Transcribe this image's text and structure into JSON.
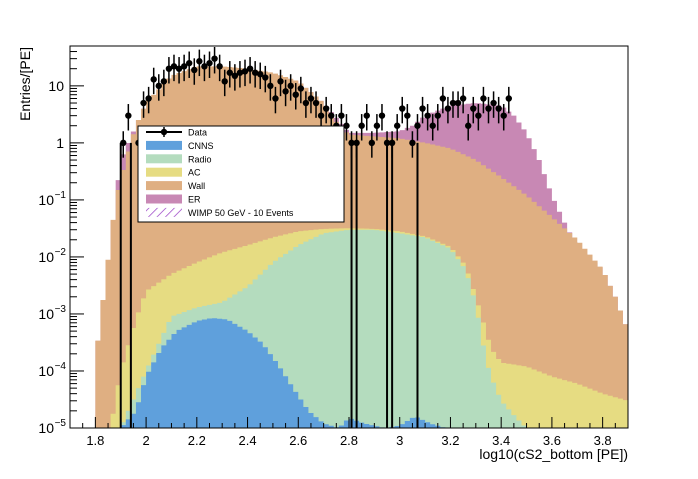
{
  "chart_data": {
    "type": "area",
    "title": "",
    "xlabel": "log10(cS2_bottom [PE])",
    "ylabel": "Entries/[PE]",
    "x_range": [
      1.7,
      3.9
    ],
    "y_range": [
      1e-05,
      50
    ],
    "y_scale": "log",
    "x_ticks": [
      "1.8",
      "2",
      "2.2",
      "2.4",
      "2.6",
      "2.8",
      "3",
      "3.2",
      "3.4",
      "3.6",
      "3.8"
    ],
    "x_tick_values": [
      1.8,
      2.0,
      2.2,
      2.4,
      2.6,
      2.8,
      3.0,
      3.2,
      3.4,
      3.6,
      3.8
    ],
    "y_ticks": [
      {
        "value": 1e-05,
        "base": "10",
        "exp": "−5"
      },
      {
        "value": 0.0001,
        "base": "10",
        "exp": "−4"
      },
      {
        "value": 0.001,
        "base": "10",
        "exp": "−3"
      },
      {
        "value": 0.01,
        "base": "10",
        "exp": "−2"
      },
      {
        "value": 0.1,
        "base": "10",
        "exp": "−1"
      },
      {
        "value": 1,
        "base": "1",
        "exp": ""
      },
      {
        "value": 10,
        "base": "10",
        "exp": ""
      }
    ],
    "legend_position": "inside-left",
    "stack": [
      {
        "name": "CNNS",
        "color": "#5fa0dc",
        "points": [
          [
            1.9,
            1e-05
          ],
          [
            1.96,
            2e-05
          ],
          [
            2.0,
            8e-05
          ],
          [
            2.06,
            0.00025
          ],
          [
            2.12,
            0.0005
          ],
          [
            2.2,
            0.00075
          ],
          [
            2.26,
            0.00085
          ],
          [
            2.32,
            0.0008
          ],
          [
            2.4,
            0.0005
          ],
          [
            2.46,
            0.0003
          ],
          [
            2.52,
            0.00013
          ],
          [
            2.58,
            5e-05
          ],
          [
            2.64,
            2e-05
          ],
          [
            2.7,
            1.2e-05
          ],
          [
            2.76,
            1e-05
          ],
          [
            2.8,
            1.5e-05
          ],
          [
            2.86,
            1.2e-05
          ],
          [
            2.94,
            1e-05
          ],
          [
            3.0,
            1.1e-05
          ],
          [
            3.06,
            1.6e-05
          ],
          [
            3.12,
            1.2e-05
          ],
          [
            3.18,
            1e-05
          ]
        ]
      },
      {
        "name": "Radio",
        "color": "#b4dcbe",
        "points": [
          [
            1.86,
            1e-05
          ],
          [
            1.9,
            1e-05
          ],
          [
            2.0,
            0.0001
          ],
          [
            2.1,
            0.0009
          ],
          [
            2.2,
            0.0013
          ],
          [
            2.3,
            0.0016
          ],
          [
            2.4,
            0.003
          ],
          [
            2.5,
            0.008
          ],
          [
            2.6,
            0.016
          ],
          [
            2.7,
            0.026
          ],
          [
            2.8,
            0.03
          ],
          [
            2.9,
            0.03
          ],
          [
            3.0,
            0.026
          ],
          [
            3.1,
            0.022
          ],
          [
            3.2,
            0.014
          ],
          [
            3.26,
            0.006
          ],
          [
            3.3,
            0.0015
          ],
          [
            3.34,
            0.00016
          ],
          [
            3.36,
            8e-05
          ],
          [
            3.4,
            3e-05
          ],
          [
            3.46,
            1.5e-05
          ],
          [
            3.5,
            1e-05
          ]
        ]
      },
      {
        "name": "AC",
        "color": "#e6dc82",
        "points": [
          [
            1.82,
            1e-05
          ],
          [
            1.86,
            1e-05
          ],
          [
            1.9,
            0.0001
          ],
          [
            1.96,
            0.0008
          ],
          [
            2.0,
            0.0025
          ],
          [
            2.1,
            0.005
          ],
          [
            2.2,
            0.008
          ],
          [
            2.3,
            0.012
          ],
          [
            2.4,
            0.016
          ],
          [
            2.5,
            0.022
          ],
          [
            2.6,
            0.028
          ],
          [
            2.7,
            0.031
          ],
          [
            2.8,
            0.032
          ],
          [
            2.9,
            0.031
          ],
          [
            3.0,
            0.028
          ],
          [
            3.1,
            0.023
          ],
          [
            3.2,
            0.015
          ],
          [
            3.26,
            0.007
          ],
          [
            3.3,
            0.002
          ],
          [
            3.36,
            0.00025
          ],
          [
            3.4,
            0.00014
          ],
          [
            3.5,
            0.00012
          ],
          [
            3.6,
            8e-05
          ],
          [
            3.7,
            6e-05
          ],
          [
            3.8,
            4e-05
          ],
          [
            3.9,
            3e-05
          ]
        ]
      },
      {
        "name": "Wall",
        "color": "#dfaf82",
        "points": [
          [
            1.8,
            0.00015
          ],
          [
            1.84,
            0.004
          ],
          [
            1.88,
            0.1
          ],
          [
            1.92,
            0.5
          ],
          [
            1.96,
            2
          ],
          [
            2.0,
            5
          ],
          [
            2.1,
            15
          ],
          [
            2.2,
            22
          ],
          [
            2.3,
            22
          ],
          [
            2.4,
            20
          ],
          [
            2.5,
            17
          ],
          [
            2.6,
            12
          ],
          [
            2.7,
            5
          ],
          [
            2.76,
            2
          ],
          [
            2.8,
            1.4
          ],
          [
            2.9,
            1.3
          ],
          [
            3.0,
            1.2
          ],
          [
            3.1,
            1.0
          ],
          [
            3.2,
            0.8
          ],
          [
            3.3,
            0.5
          ],
          [
            3.4,
            0.25
          ],
          [
            3.5,
            0.12
          ],
          [
            3.6,
            0.05
          ],
          [
            3.7,
            0.02
          ],
          [
            3.8,
            0.006
          ],
          [
            3.85,
            0.002
          ],
          [
            3.9,
            0.0005
          ]
        ]
      },
      {
        "name": "ER",
        "color": "#c888b4",
        "points": [
          [
            1.8,
            0.00015
          ],
          [
            1.9,
            0.5
          ],
          [
            2.0,
            5
          ],
          [
            2.2,
            22
          ],
          [
            2.4,
            20
          ],
          [
            2.6,
            12
          ],
          [
            2.7,
            5
          ],
          [
            2.8,
            1.5
          ],
          [
            2.9,
            1.5
          ],
          [
            3.0,
            1.6
          ],
          [
            3.05,
            2.0
          ],
          [
            3.1,
            3.0
          ],
          [
            3.2,
            4.5
          ],
          [
            3.3,
            5.0
          ],
          [
            3.4,
            4.5
          ],
          [
            3.45,
            3.0
          ],
          [
            3.5,
            1.5
          ],
          [
            3.55,
            0.5
          ],
          [
            3.6,
            0.12
          ],
          [
            3.65,
            0.04
          ],
          [
            3.7,
            0.015
          ],
          [
            3.8,
            0.006
          ],
          [
            3.85,
            0.002
          ],
          [
            3.9,
            0.0005
          ]
        ]
      }
    ],
    "data_points": [
      {
        "x": 1.91,
        "y": 1.0
      },
      {
        "x": 1.93,
        "y": 3.0
      },
      {
        "x": 1.97,
        "y": 1.0
      },
      {
        "x": 1.99,
        "y": 5.0
      },
      {
        "x": 2.01,
        "y": 6.0
      },
      {
        "x": 2.03,
        "y": 13.0
      },
      {
        "x": 2.05,
        "y": 10.0
      },
      {
        "x": 2.07,
        "y": 12.0
      },
      {
        "x": 2.09,
        "y": 20.0
      },
      {
        "x": 2.11,
        "y": 22.0
      },
      {
        "x": 2.13,
        "y": 20.0
      },
      {
        "x": 2.15,
        "y": 22.0
      },
      {
        "x": 2.17,
        "y": 25.0
      },
      {
        "x": 2.19,
        "y": 19.0
      },
      {
        "x": 2.21,
        "y": 27.0
      },
      {
        "x": 2.23,
        "y": 22.0
      },
      {
        "x": 2.25,
        "y": 25.0
      },
      {
        "x": 2.27,
        "y": 30.0
      },
      {
        "x": 2.29,
        "y": 22.0
      },
      {
        "x": 2.31,
        "y": 12.0
      },
      {
        "x": 2.33,
        "y": 17.0
      },
      {
        "x": 2.35,
        "y": 15.0
      },
      {
        "x": 2.37,
        "y": 17.0
      },
      {
        "x": 2.39,
        "y": 18.0
      },
      {
        "x": 2.41,
        "y": 20.0
      },
      {
        "x": 2.43,
        "y": 17.0
      },
      {
        "x": 2.45,
        "y": 16.0
      },
      {
        "x": 2.47,
        "y": 14.0
      },
      {
        "x": 2.49,
        "y": 10.0
      },
      {
        "x": 2.51,
        "y": 6.0
      },
      {
        "x": 2.53,
        "y": 12.0
      },
      {
        "x": 2.55,
        "y": 8.0
      },
      {
        "x": 2.57,
        "y": 10.0
      },
      {
        "x": 2.59,
        "y": 7.0
      },
      {
        "x": 2.61,
        "y": 9.0
      },
      {
        "x": 2.63,
        "y": 5.0
      },
      {
        "x": 2.65,
        "y": 6.0
      },
      {
        "x": 2.67,
        "y": 5.0
      },
      {
        "x": 2.69,
        "y": 3.0
      },
      {
        "x": 2.71,
        "y": 4.0
      },
      {
        "x": 2.73,
        "y": 3.0
      },
      {
        "x": 2.75,
        "y": 2.0
      },
      {
        "x": 2.77,
        "y": 3.0
      },
      {
        "x": 2.79,
        "y": 2.0
      },
      {
        "x": 2.81,
        "y": 1.0
      },
      {
        "x": 2.83,
        "y": 1.0
      },
      {
        "x": 2.85,
        "y": 2.0
      },
      {
        "x": 2.87,
        "y": 3.0
      },
      {
        "x": 2.89,
        "y": 1.0
      },
      {
        "x": 2.91,
        "y": 2.0
      },
      {
        "x": 2.93,
        "y": 3.0
      },
      {
        "x": 2.95,
        "y": 1.0
      },
      {
        "x": 2.97,
        "y": 1.0
      },
      {
        "x": 2.99,
        "y": 2.0
      },
      {
        "x": 3.01,
        "y": 4.0
      },
      {
        "x": 3.03,
        "y": 3.0
      },
      {
        "x": 3.05,
        "y": 1.0
      },
      {
        "x": 3.07,
        "y": 2.0
      },
      {
        "x": 3.09,
        "y": 4.0
      },
      {
        "x": 3.11,
        "y": 3.0
      },
      {
        "x": 3.13,
        "y": 2.0
      },
      {
        "x": 3.15,
        "y": 3.0
      },
      {
        "x": 3.17,
        "y": 6.0
      },
      {
        "x": 3.19,
        "y": 4.0
      },
      {
        "x": 3.21,
        "y": 5.0
      },
      {
        "x": 3.23,
        "y": 5.0
      },
      {
        "x": 3.25,
        "y": 6.0
      },
      {
        "x": 3.27,
        "y": 2.0
      },
      {
        "x": 3.29,
        "y": 4.0
      },
      {
        "x": 3.31,
        "y": 3.0
      },
      {
        "x": 3.33,
        "y": 6.0
      },
      {
        "x": 3.35,
        "y": 4.0
      },
      {
        "x": 3.37,
        "y": 5.0
      },
      {
        "x": 3.39,
        "y": 4.0
      },
      {
        "x": 3.41,
        "y": 3.0
      },
      {
        "x": 3.43,
        "y": 6.0
      }
    ],
    "zero_lines": [
      1.9,
      1.94,
      2.81,
      2.83,
      2.95,
      2.97,
      3.07
    ],
    "legend": [
      {
        "label": "Data",
        "kind": "marker",
        "color": "#000000"
      },
      {
        "label": "CNNS",
        "kind": "fill",
        "color": "#5fa0dc"
      },
      {
        "label": "Radio",
        "kind": "fill",
        "color": "#b4dcbe"
      },
      {
        "label": "AC",
        "kind": "fill",
        "color": "#e6dc82"
      },
      {
        "label": "Wall",
        "kind": "fill",
        "color": "#dfaf82"
      },
      {
        "label": "ER",
        "kind": "fill",
        "color": "#c888b4"
      },
      {
        "label": "WIMP 50 GeV - 10 Events",
        "kind": "hatch",
        "color": "#9030c0"
      }
    ]
  }
}
